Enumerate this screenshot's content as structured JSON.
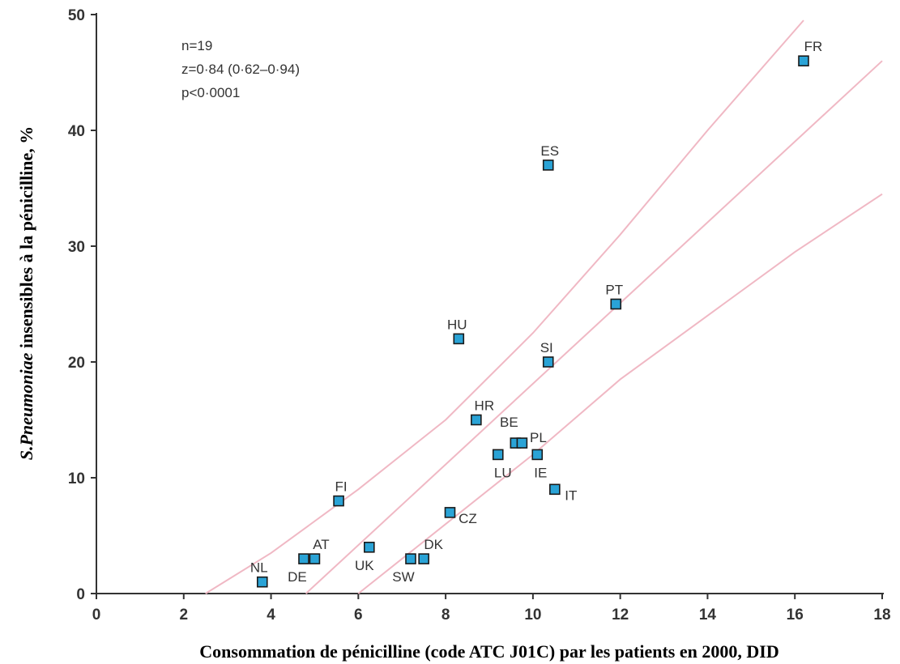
{
  "chart_data": {
    "type": "scatter",
    "xlabel": "Consommation de pénicilline (code ATC J01C) par les patients en 2000, DID",
    "ylabel_italic": "S.Pneumoniae",
    "ylabel_rest": " insensibles à la pénicilline, %",
    "xlim": [
      0,
      18
    ],
    "ylim": [
      0,
      50
    ],
    "x_ticks": [
      0,
      2,
      4,
      6,
      8,
      10,
      12,
      14,
      16,
      18
    ],
    "y_ticks": [
      0,
      10,
      20,
      30,
      40,
      50
    ],
    "grid": false,
    "stats": [
      "n=19",
      "z=0·84 (0·62–0·94)",
      "p<0·0001"
    ],
    "points": [
      {
        "label": "FR",
        "x": 16.2,
        "y": 46
      },
      {
        "label": "ES",
        "x": 10.35,
        "y": 37
      },
      {
        "label": "PT",
        "x": 11.9,
        "y": 25
      },
      {
        "label": "HU",
        "x": 8.3,
        "y": 22
      },
      {
        "label": "SI",
        "x": 10.35,
        "y": 20
      },
      {
        "label": "HR",
        "x": 8.7,
        "y": 15
      },
      {
        "label": "BE",
        "x": 9.6,
        "y": 13
      },
      {
        "label": "PL",
        "x": 9.75,
        "y": 13
      },
      {
        "label": "LU",
        "x": 9.2,
        "y": 12
      },
      {
        "label": "IE",
        "x": 10.1,
        "y": 12
      },
      {
        "label": "IT",
        "x": 10.5,
        "y": 9
      },
      {
        "label": "FI",
        "x": 5.55,
        "y": 8
      },
      {
        "label": "CZ",
        "x": 8.1,
        "y": 7
      },
      {
        "label": "UK",
        "x": 6.25,
        "y": 4
      },
      {
        "label": "AT",
        "x": 5.0,
        "y": 3
      },
      {
        "label": "DE",
        "x": 4.75,
        "y": 3
      },
      {
        "label": "DK",
        "x": 7.5,
        "y": 3
      },
      {
        "label": "SW",
        "x": 7.2,
        "y": 3
      },
      {
        "label": "NL",
        "x": 3.8,
        "y": 1
      }
    ],
    "regression_line": [
      [
        4.8,
        0
      ],
      [
        18,
        46
      ]
    ],
    "upper_confidence": [
      [
        2.5,
        0
      ],
      [
        4,
        3.5
      ],
      [
        6,
        9
      ],
      [
        8,
        15
      ],
      [
        10,
        22.5
      ],
      [
        12,
        31
      ],
      [
        14,
        40
      ],
      [
        16.2,
        49.5
      ]
    ],
    "lower_confidence": [
      [
        6,
        0
      ],
      [
        8,
        6
      ],
      [
        10,
        12
      ],
      [
        12,
        18.5
      ],
      [
        14,
        24
      ],
      [
        16,
        29.5
      ],
      [
        18,
        34.5
      ]
    ],
    "colors": {
      "marker_fill": "#2aa3d6",
      "marker_stroke": "#1a1a1a",
      "lines": "#f0b8c4",
      "axis": "#333333"
    }
  }
}
